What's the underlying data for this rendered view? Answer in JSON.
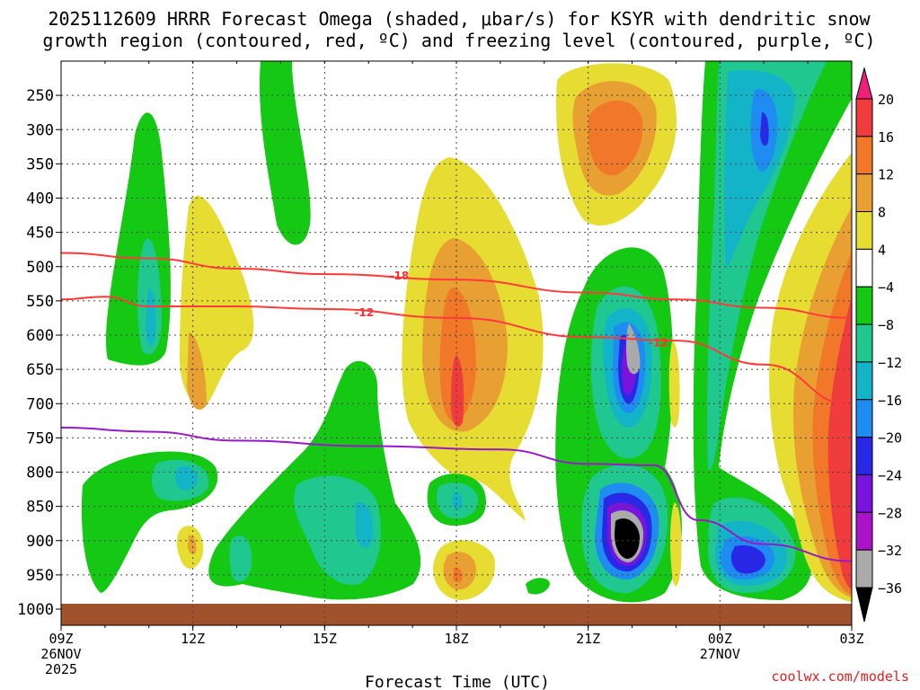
{
  "chart_data": {
    "type": "heatmap",
    "title_line1": "2025112609 HRRR Forecast Omega (shaded, μbar/s) for KSYR with dendritic snow",
    "title_line2": "growth region (contoured, red, ºC) and freezing level (contoured, purple, ºC)",
    "xlabel": "Forecast Time (UTC)",
    "x_ticks": [
      {
        "hour": 0,
        "label": "09Z",
        "sub1": "26NOV",
        "sub2": "2025"
      },
      {
        "hour": 3,
        "label": "12Z",
        "sub1": "",
        "sub2": ""
      },
      {
        "hour": 6,
        "label": "15Z",
        "sub1": "",
        "sub2": ""
      },
      {
        "hour": 9,
        "label": "18Z",
        "sub1": "",
        "sub2": ""
      },
      {
        "hour": 12,
        "label": "21Z",
        "sub1": "",
        "sub2": ""
      },
      {
        "hour": 15,
        "label": "00Z",
        "sub1": "27NOV",
        "sub2": ""
      },
      {
        "hour": 18,
        "label": "03Z",
        "sub1": "",
        "sub2": ""
      }
    ],
    "y_ticks": [
      "250",
      "300",
      "350",
      "400",
      "450",
      "500",
      "550",
      "600",
      "650",
      "700",
      "750",
      "800",
      "850",
      "900",
      "950",
      "1000"
    ],
    "y_range_hpa": [
      200,
      1000
    ],
    "x_range_hours": [
      0,
      18
    ],
    "colorbar": {
      "labels": [
        "20",
        "16",
        "12",
        "8",
        "4",
        "−4",
        "−8",
        "−12",
        "−16",
        "−20",
        "−24",
        "−28",
        "−32",
        "−36"
      ],
      "colors": [
        "#f01e78",
        "#f03c3c",
        "#f07828",
        "#e8a032",
        "#e6dc32",
        "#ffffff",
        "#14c814",
        "#20c890",
        "#14b4c8",
        "#1e8cf0",
        "#2828e6",
        "#7814dc",
        "#aa14c8",
        "#aaaaaa",
        "#000000"
      ]
    },
    "dgz_contours": [
      {
        "label": "-18",
        "points": [
          [
            0,
            480
          ],
          [
            2,
            488
          ],
          [
            4,
            503
          ],
          [
            6,
            511
          ],
          [
            9,
            519
          ],
          [
            12,
            538
          ],
          [
            14,
            548
          ],
          [
            16,
            560
          ],
          [
            18,
            575
          ]
        ]
      },
      {
        "label": "-12",
        "points": [
          [
            0,
            548
          ],
          [
            1,
            544
          ],
          [
            2,
            558
          ],
          [
            4,
            558
          ],
          [
            6,
            562
          ],
          [
            9,
            575
          ],
          [
            12,
            603
          ],
          [
            14,
            608
          ],
          [
            16,
            643
          ],
          [
            18,
            702
          ]
        ]
      }
    ],
    "freezing_level": {
      "label": "0",
      "points": [
        [
          0,
          735
        ],
        [
          2,
          741
        ],
        [
          4,
          754
        ],
        [
          7,
          762
        ],
        [
          10,
          767
        ],
        [
          12,
          788
        ],
        [
          13.5,
          790
        ],
        [
          14.5,
          870
        ],
        [
          16,
          905
        ],
        [
          18,
          930
        ]
      ]
    },
    "credit": "coolwx.com/models"
  }
}
